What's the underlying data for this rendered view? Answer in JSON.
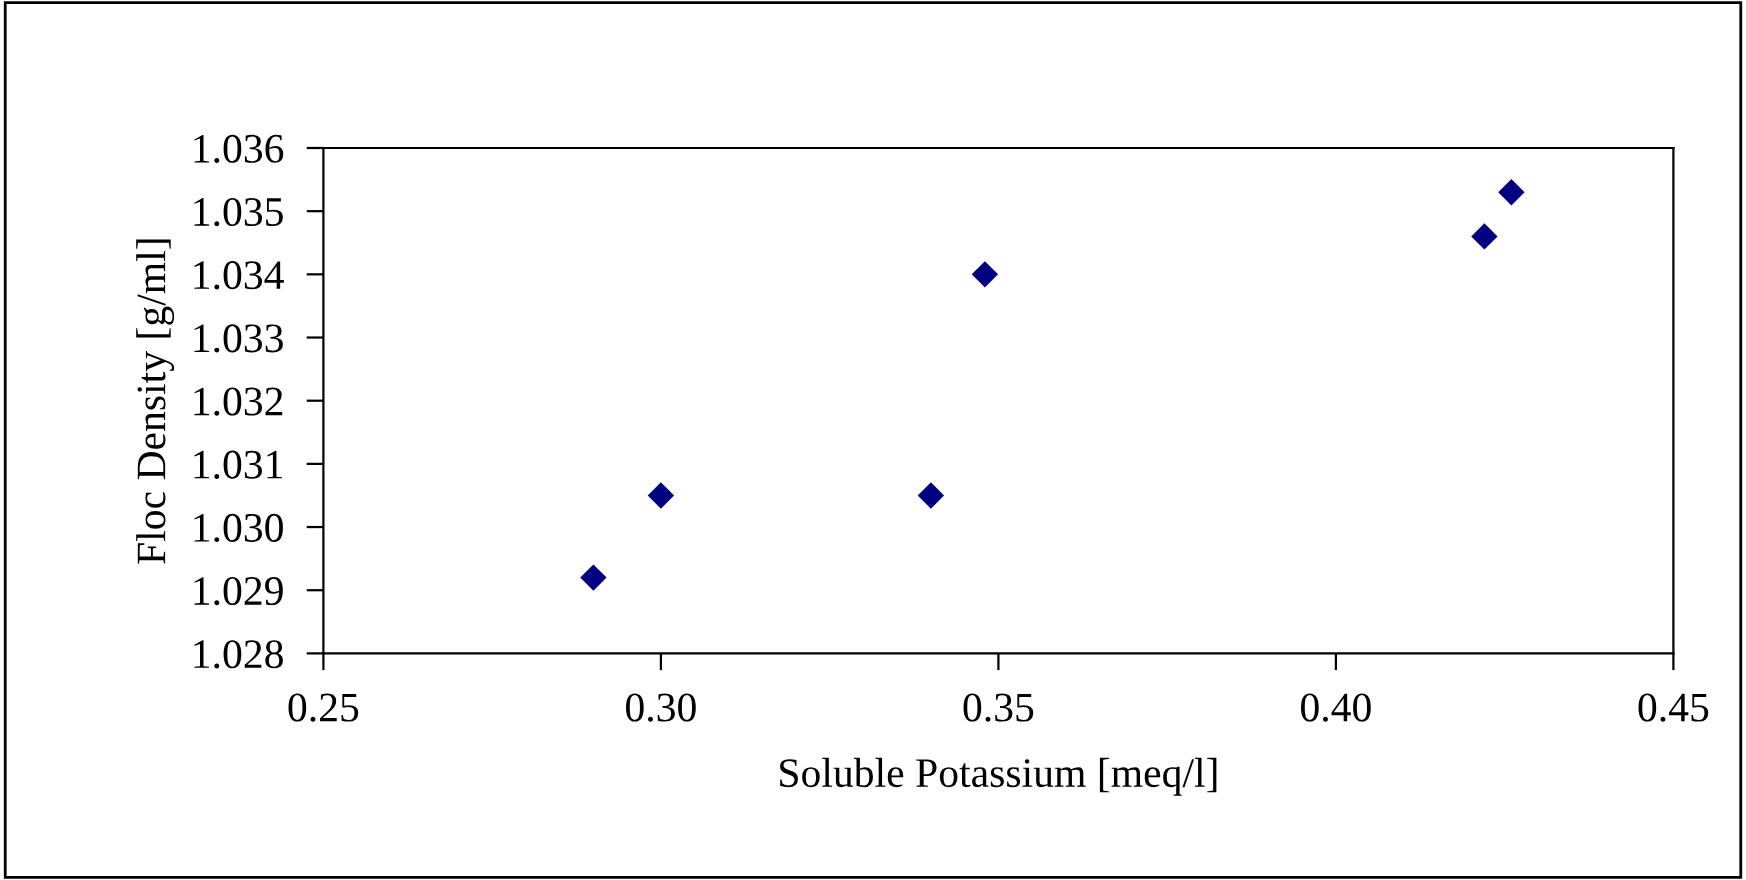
{
  "chart_data": {
    "type": "scatter",
    "xlabel": "Soluble Potassium [meq/l]",
    "ylabel": "Floc Density [g/ml]",
    "x": [
      0.29,
      0.3,
      0.34,
      0.348,
      0.422,
      0.426
    ],
    "series": [
      {
        "color": "#000080",
        "values": [
          1.0292,
          1.0305,
          1.0305,
          1.034,
          1.0346,
          1.0353
        ]
      }
    ],
    "marker": "diamond",
    "grid": false,
    "legend": false,
    "xlim": [
      0.25,
      0.45
    ],
    "xticks": [
      {
        "value": 0.25,
        "label": "0.25"
      },
      {
        "value": 0.3,
        "label": "0.30"
      },
      {
        "value": 0.35,
        "label": "0.35"
      },
      {
        "value": 0.4,
        "label": "0.40"
      },
      {
        "value": 0.45,
        "label": "0.45"
      }
    ],
    "ylim": [
      1.028,
      1.036
    ],
    "yticks": [
      {
        "value": 1.028,
        "label": "1.028"
      },
      {
        "value": 1.029,
        "label": "1.029"
      },
      {
        "value": 1.03,
        "label": "1.030"
      },
      {
        "value": 1.031,
        "label": "1.031"
      },
      {
        "value": 1.032,
        "label": "1.032"
      },
      {
        "value": 1.033,
        "label": "1.033"
      },
      {
        "value": 1.034,
        "label": "1.034"
      },
      {
        "value": 1.035,
        "label": "1.035"
      },
      {
        "value": 1.036,
        "label": "1.036"
      }
    ]
  }
}
